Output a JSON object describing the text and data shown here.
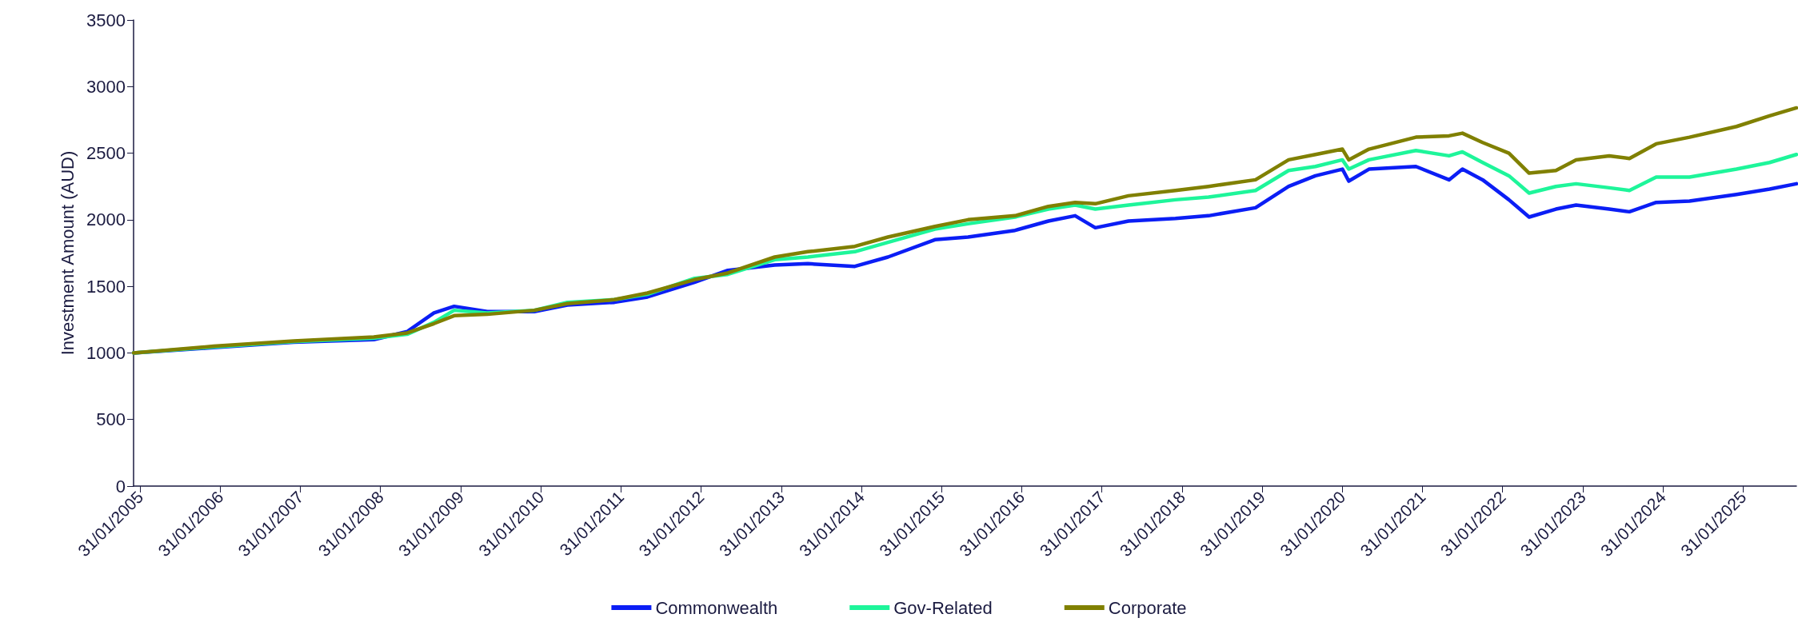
{
  "chart_data": {
    "type": "line",
    "ylabel": "Investment Amount (AUD)",
    "x": [
      "2005-01",
      "2006-01",
      "2007-01",
      "2008-01",
      "2008-06",
      "2008-10",
      "2009-01",
      "2009-06",
      "2010-01",
      "2010-06",
      "2011-01",
      "2011-06",
      "2012-01",
      "2012-06",
      "2013-01",
      "2013-06",
      "2014-01",
      "2014-06",
      "2015-01",
      "2015-06",
      "2016-01",
      "2016-06",
      "2016-10",
      "2017-01",
      "2017-06",
      "2018-01",
      "2018-06",
      "2019-01",
      "2019-06",
      "2019-10",
      "2020-02",
      "2020-03",
      "2020-06",
      "2021-01",
      "2021-06",
      "2021-08",
      "2021-11",
      "2022-03",
      "2022-06",
      "2022-10",
      "2023-01",
      "2023-06",
      "2023-09",
      "2024-01",
      "2024-06",
      "2025-01",
      "2025-06",
      "2025-10"
    ],
    "series": [
      {
        "name": "Commonwealth",
        "color": "#0b1ef5",
        "values": [
          1000,
          1040,
          1080,
          1100,
          1160,
          1300,
          1350,
          1310,
          1310,
          1360,
          1380,
          1420,
          1530,
          1620,
          1660,
          1670,
          1650,
          1720,
          1850,
          1870,
          1920,
          1990,
          2030,
          1940,
          1990,
          2010,
          2030,
          2090,
          2250,
          2330,
          2380,
          2290,
          2380,
          2400,
          2300,
          2380,
          2300,
          2150,
          2020,
          2080,
          2110,
          2080,
          2060,
          2130,
          2140,
          2190,
          2230,
          2270
        ]
      },
      {
        "name": "Gov-Related",
        "color": "#1ef59a",
        "values": [
          1000,
          1045,
          1085,
          1110,
          1140,
          1230,
          1320,
          1300,
          1320,
          1380,
          1400,
          1440,
          1560,
          1590,
          1700,
          1720,
          1760,
          1830,
          1930,
          1970,
          2020,
          2080,
          2110,
          2080,
          2110,
          2150,
          2170,
          2220,
          2370,
          2400,
          2450,
          2380,
          2450,
          2520,
          2480,
          2510,
          2430,
          2330,
          2200,
          2250,
          2270,
          2240,
          2220,
          2320,
          2320,
          2380,
          2430,
          2490
        ]
      },
      {
        "name": "Corporate",
        "color": "#808000",
        "values": [
          1000,
          1050,
          1090,
          1120,
          1150,
          1220,
          1280,
          1290,
          1320,
          1370,
          1400,
          1450,
          1550,
          1600,
          1720,
          1760,
          1800,
          1870,
          1950,
          2000,
          2030,
          2100,
          2130,
          2120,
          2180,
          2220,
          2250,
          2300,
          2450,
          2490,
          2530,
          2450,
          2530,
          2620,
          2630,
          2650,
          2580,
          2500,
          2350,
          2370,
          2450,
          2480,
          2460,
          2570,
          2620,
          2700,
          2780,
          2840
        ]
      }
    ],
    "xlim": [
      "2005-01",
      "2025-10"
    ],
    "xticks": [
      {
        "value": "2005-01-31",
        "label": "31/01/2005"
      },
      {
        "value": "2006-01-31",
        "label": "31/01/2006"
      },
      {
        "value": "2007-01-31",
        "label": "31/01/2007"
      },
      {
        "value": "2008-01-31",
        "label": "31/01/2008"
      },
      {
        "value": "2009-01-31",
        "label": "31/01/2009"
      },
      {
        "value": "2010-01-31",
        "label": "31/01/2010"
      },
      {
        "value": "2011-01-31",
        "label": "31/01/2011"
      },
      {
        "value": "2012-01-31",
        "label": "31/01/2012"
      },
      {
        "value": "2013-01-31",
        "label": "31/01/2013"
      },
      {
        "value": "2014-01-31",
        "label": "31/01/2014"
      },
      {
        "value": "2015-01-31",
        "label": "31/01/2015"
      },
      {
        "value": "2016-01-31",
        "label": "31/01/2016"
      },
      {
        "value": "2017-01-31",
        "label": "31/01/2017"
      },
      {
        "value": "2018-01-31",
        "label": "31/01/2018"
      },
      {
        "value": "2019-01-31",
        "label": "31/01/2019"
      },
      {
        "value": "2020-01-31",
        "label": "31/01/2020"
      },
      {
        "value": "2021-01-31",
        "label": "31/01/2021"
      },
      {
        "value": "2022-01-31",
        "label": "31/01/2022"
      },
      {
        "value": "2023-01-31",
        "label": "31/01/2023"
      },
      {
        "value": "2024-01-31",
        "label": "31/01/2024"
      },
      {
        "value": "2025-01-31",
        "label": "31/01/2025"
      }
    ],
    "ylim": [
      0,
      3500
    ],
    "yticks": [
      0,
      500,
      1000,
      1500,
      2000,
      2500,
      3000,
      3500
    ],
    "grid": false,
    "legend": "bottom",
    "marker": "none",
    "line_style": "solid"
  }
}
